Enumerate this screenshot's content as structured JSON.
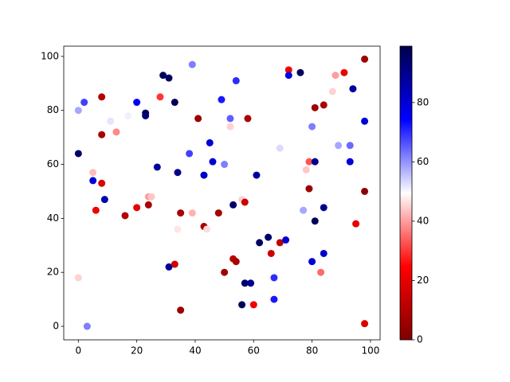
{
  "chart_data": {
    "type": "scatter",
    "x": [
      0,
      0,
      2,
      0,
      3,
      5,
      5,
      6,
      8,
      8,
      8,
      9,
      11,
      13,
      16,
      17,
      20,
      20,
      23,
      23,
      24,
      25,
      24,
      27,
      28,
      29,
      31,
      31,
      33,
      33,
      34,
      34,
      35,
      35,
      38,
      39,
      39,
      41,
      43,
      43,
      44,
      45,
      46,
      48,
      49,
      50,
      50,
      52,
      52,
      53,
      53,
      54,
      54,
      56,
      57,
      56,
      57,
      58,
      59,
      60,
      61,
      62,
      65,
      66,
      67,
      67,
      69,
      69,
      71,
      72,
      72,
      76,
      77,
      78,
      79,
      79,
      80,
      81,
      81,
      81,
      80,
      83,
      84,
      84,
      84,
      87,
      88,
      89,
      91,
      93,
      93,
      94,
      95,
      98,
      98,
      98,
      98
    ],
    "y": [
      64,
      80,
      83,
      18,
      0,
      57,
      54,
      43,
      85,
      71,
      53,
      47,
      76,
      72,
      41,
      78,
      83,
      44,
      79,
      78,
      48,
      48,
      45,
      59,
      85,
      93,
      92,
      22,
      83,
      23,
      57,
      36,
      42,
      6,
      64,
      97,
      42,
      77,
      56,
      37,
      36,
      68,
      61,
      42,
      84,
      60,
      20,
      77,
      74,
      45,
      25,
      24,
      91,
      47,
      46,
      8,
      16,
      77,
      16,
      8,
      56,
      31,
      33,
      27,
      18,
      10,
      66,
      31,
      32,
      95,
      93,
      94,
      43,
      58,
      61,
      51,
      74,
      61,
      81,
      39,
      24,
      20,
      82,
      44,
      27,
      87,
      93,
      67,
      94,
      67,
      61,
      88,
      38,
      99,
      76,
      50,
      1
    ],
    "c": [
      95,
      58,
      68,
      45,
      62,
      43,
      80,
      22,
      10,
      8,
      18,
      85,
      52,
      38,
      10,
      51,
      75,
      20,
      96,
      93,
      40,
      44,
      8,
      88,
      30,
      97,
      96,
      88,
      98,
      15,
      90,
      47,
      8,
      5,
      68,
      62,
      42,
      5,
      82,
      8,
      46,
      80,
      80,
      7,
      72,
      62,
      7,
      65,
      45,
      95,
      12,
      8,
      70,
      45,
      15,
      97,
      95,
      8,
      90,
      22,
      88,
      96,
      95,
      15,
      70,
      72,
      53,
      12,
      80,
      22,
      78,
      97,
      58,
      44,
      33,
      6,
      62,
      90,
      6,
      97,
      80,
      35,
      8,
      90,
      82,
      45,
      40,
      58,
      20,
      64,
      80,
      88,
      20,
      6,
      80,
      3,
      18
    ],
    "colormap": "seismic_r",
    "clim": [
      0,
      99
    ],
    "colorbar_ticks": [
      0,
      20,
      40,
      60,
      80
    ],
    "xlim": [
      -5,
      103.3
    ],
    "ylim": [
      -5,
      103.8
    ],
    "xticks": [
      0,
      20,
      40,
      60,
      80,
      100
    ],
    "yticks": [
      0,
      20,
      40,
      60,
      80,
      100
    ]
  }
}
